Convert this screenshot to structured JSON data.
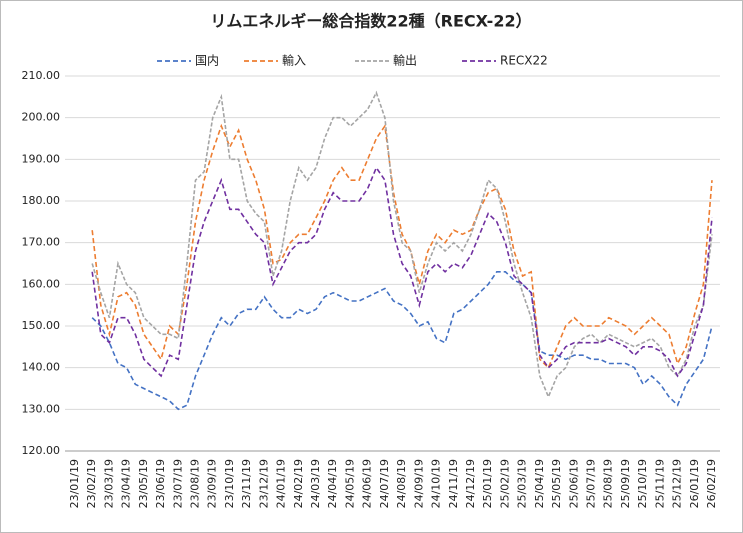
{
  "chart_data": {
    "type": "line",
    "title": "リムエネルギー総合指数22種（RECX-22）",
    "categories": [
      "23/01/19",
      null,
      "23/02/19",
      null,
      "23/03/19",
      null,
      "23/04/19",
      null,
      "23/05/19",
      null,
      "23/06/19",
      null,
      "23/07/19",
      null,
      "23/08/19",
      null,
      "23/09/19",
      null,
      "23/10/19",
      null,
      "23/11/19",
      null,
      "23/12/19",
      null,
      "24/01/19",
      null,
      "24/02/19",
      null,
      "24/03/19",
      null,
      "24/04/19",
      null,
      "24/05/19",
      null,
      "24/06/19",
      null,
      "24/07/19",
      null,
      "24/08/19",
      null,
      "24/09/19",
      null,
      "24/10/19",
      null,
      "24/11/19",
      null,
      "24/12/19",
      null,
      "25/01/19",
      null,
      "25/02/19",
      null,
      "25/03/19",
      null,
      "25/04/19",
      null,
      "25/05/19",
      null,
      "25/06/19",
      null,
      "25/07/19",
      null,
      "25/08/19",
      null,
      "25/09/19",
      null,
      "25/10/19",
      null,
      "25/11/19",
      null,
      "25/12/19",
      null,
      "26/01/19",
      null,
      "26/02/19"
    ],
    "series": [
      {
        "name": "国内",
        "color": "#4472c4",
        "values": [
          null,
          null,
          152,
          150,
          146,
          141,
          140,
          136,
          135,
          134,
          133,
          132,
          130,
          131,
          138,
          143,
          148,
          152,
          150,
          153,
          154,
          154,
          157,
          154,
          152,
          152,
          154,
          153,
          154,
          157,
          158,
          157,
          156,
          156,
          157,
          158,
          159,
          156,
          155,
          153,
          150,
          151,
          147,
          146,
          153,
          154,
          156,
          158,
          160,
          163,
          163,
          161,
          160,
          158,
          144,
          143,
          143,
          142,
          143,
          143,
          142,
          142,
          141,
          141,
          141,
          140,
          136,
          138,
          136,
          133,
          131,
          136,
          139,
          142,
          150
        ]
      },
      {
        "name": "輸入",
        "color": "#ed7d31",
        "values": [
          null,
          null,
          173,
          155,
          148,
          157,
          158,
          155,
          148,
          145,
          142,
          150,
          148,
          160,
          175,
          185,
          192,
          198,
          193,
          197,
          190,
          185,
          178,
          165,
          166,
          170,
          172,
          172,
          176,
          180,
          185,
          188,
          185,
          185,
          190,
          195,
          198,
          182,
          172,
          168,
          160,
          168,
          172,
          170,
          173,
          172,
          173,
          178,
          182,
          183,
          178,
          168,
          162,
          163,
          142,
          140,
          145,
          150,
          152,
          150,
          150,
          150,
          152,
          151,
          150,
          148,
          150,
          152,
          150,
          148,
          141,
          145,
          153,
          160,
          185
        ]
      },
      {
        "name": "輸出",
        "color": "#a5a5a5",
        "values": [
          null,
          null,
          165,
          158,
          152,
          165,
          160,
          158,
          152,
          150,
          148,
          148,
          147,
          165,
          185,
          187,
          200,
          205,
          190,
          190,
          180,
          177,
          175,
          162,
          168,
          180,
          188,
          185,
          188,
          195,
          200,
          200,
          198,
          200,
          202,
          206,
          200,
          180,
          170,
          168,
          158,
          165,
          170,
          168,
          170,
          168,
          172,
          178,
          185,
          183,
          175,
          165,
          158,
          152,
          138,
          133,
          138,
          140,
          145,
          147,
          148,
          146,
          148,
          147,
          146,
          145,
          146,
          147,
          145,
          140,
          138,
          142,
          150,
          155,
          172
        ]
      },
      {
        "name": "RECX22",
        "color": "#7030a0",
        "values": [
          null,
          null,
          163,
          148,
          146,
          152,
          152,
          148,
          142,
          140,
          138,
          143,
          142,
          155,
          168,
          175,
          180,
          185,
          178,
          178,
          175,
          172,
          170,
          160,
          164,
          168,
          170,
          170,
          172,
          178,
          182,
          180,
          180,
          180,
          183,
          188,
          185,
          172,
          165,
          162,
          155,
          163,
          165,
          163,
          165,
          164,
          167,
          172,
          177,
          175,
          170,
          162,
          160,
          158,
          143,
          140,
          142,
          145,
          146,
          146,
          146,
          146,
          147,
          146,
          145,
          143,
          145,
          145,
          144,
          142,
          138,
          141,
          148,
          155,
          176
        ]
      }
    ],
    "ylim": [
      120,
      210
    ],
    "yticks": [
      {
        "value": 120,
        "label": "120.00"
      },
      {
        "value": 130,
        "label": "130.00"
      },
      {
        "value": 140,
        "label": "140.00"
      },
      {
        "value": 150,
        "label": "150.00"
      },
      {
        "value": 160,
        "label": "160.00"
      },
      {
        "value": 170,
        "label": "170.00"
      },
      {
        "value": 180,
        "label": "180.00"
      },
      {
        "value": 190,
        "label": "190.00"
      },
      {
        "value": 200,
        "label": "200.00"
      },
      {
        "value": 210,
        "label": "210.00"
      }
    ],
    "grid": true,
    "legend": "top"
  }
}
